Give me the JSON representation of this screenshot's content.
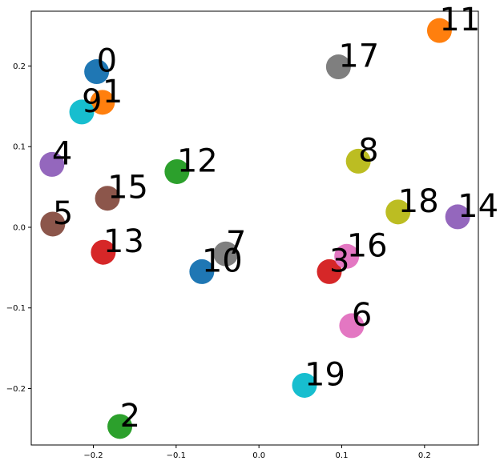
{
  "chart_data": {
    "type": "scatter",
    "title": "",
    "xlabel": "",
    "ylabel": "",
    "xlim": [
      -0.275,
      0.265
    ],
    "ylim": [
      -0.27,
      0.268
    ],
    "grid": false,
    "legend": "none",
    "x_ticks": [
      -0.2,
      -0.1,
      0.0,
      0.1,
      0.2
    ],
    "x_tick_labels": [
      "−0.2",
      "−0.1",
      "0.0",
      "0.1",
      "0.2"
    ],
    "y_ticks": [
      0.2,
      0.1,
      0.0,
      -0.1,
      -0.2
    ],
    "y_tick_labels": [
      "0.2",
      "0.1",
      "0.0",
      "−0.1",
      "−0.2"
    ],
    "points": [
      {
        "label": "0",
        "x": -0.196,
        "y": 0.193,
        "color": "#1f77b4"
      },
      {
        "label": "1",
        "x": -0.189,
        "y": 0.155,
        "color": "#ff7f0e"
      },
      {
        "label": "2",
        "x": -0.168,
        "y": -0.247,
        "color": "#2ca02c"
      },
      {
        "label": "3",
        "x": 0.085,
        "y": -0.055,
        "color": "#d62728"
      },
      {
        "label": "4",
        "x": -0.25,
        "y": 0.078,
        "color": "#9467bd"
      },
      {
        "label": "5",
        "x": -0.249,
        "y": 0.004,
        "color": "#8c564b"
      },
      {
        "label": "6",
        "x": 0.112,
        "y": -0.122,
        "color": "#e377c2"
      },
      {
        "label": "7",
        "x": -0.04,
        "y": -0.033,
        "color": "#7f7f7f"
      },
      {
        "label": "8",
        "x": 0.12,
        "y": 0.082,
        "color": "#bcbd22"
      },
      {
        "label": "9",
        "x": -0.214,
        "y": 0.143,
        "color": "#17becf"
      },
      {
        "label": "10",
        "x": -0.069,
        "y": -0.055,
        "color": "#1f77b4"
      },
      {
        "label": "11",
        "x": 0.218,
        "y": 0.244,
        "color": "#ff7f0e"
      },
      {
        "label": "12",
        "x": -0.099,
        "y": 0.069,
        "color": "#2ca02c"
      },
      {
        "label": "13",
        "x": -0.188,
        "y": -0.031,
        "color": "#d62728"
      },
      {
        "label": "14",
        "x": 0.24,
        "y": 0.013,
        "color": "#9467bd"
      },
      {
        "label": "15",
        "x": -0.183,
        "y": 0.036,
        "color": "#8c564b"
      },
      {
        "label": "16",
        "x": 0.106,
        "y": -0.036,
        "color": "#e377c2"
      },
      {
        "label": "17",
        "x": 0.096,
        "y": 0.199,
        "color": "#7f7f7f"
      },
      {
        "label": "18",
        "x": 0.168,
        "y": 0.019,
        "color": "#bcbd22"
      },
      {
        "label": "19",
        "x": 0.055,
        "y": -0.196,
        "color": "#17becf"
      }
    ]
  }
}
